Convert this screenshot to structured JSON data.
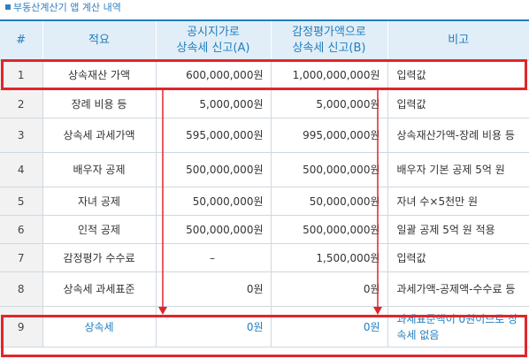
{
  "title": "부동산계산기 앱 계산 내역",
  "headers": [
    "#",
    "적요",
    "공시지가로\n상속세 신고(A)",
    "감정평가액으로\n상속세 신고(B)",
    "비고"
  ],
  "rows": [
    {
      "no": "1",
      "label": "상속재산 가액",
      "a": "600,000,000원",
      "b": "1,000,000,000원",
      "note": "입력값"
    },
    {
      "no": "2",
      "label": "장례 비용 등",
      "a": "5,000,000원",
      "b": "5,000,000원",
      "note": "입력값"
    },
    {
      "no": "3",
      "label": "상속세 과세가액",
      "a": "595,000,000원",
      "b": "995,000,000원",
      "note": "상속재산가액-장례 비용 등"
    },
    {
      "no": "4",
      "label": "배우자 공제",
      "a": "500,000,000원",
      "b": "500,000,000원",
      "note": "배우자 기본 공제 5억 원"
    },
    {
      "no": "5",
      "label": "자녀 공제",
      "a": "50,000,000원",
      "b": "50,000,000원",
      "note": "자녀 수×5천만 원"
    },
    {
      "no": "6",
      "label": "인적 공제",
      "a": "500,000,000원",
      "b": "500,000,000원",
      "note": "일괄 공제 5억 원 적용"
    },
    {
      "no": "7",
      "label": "감정평가 수수료",
      "a": "–",
      "b": "1,500,000원",
      "note": "입력값"
    },
    {
      "no": "8",
      "label": "상속세 과세표준",
      "a": "0원",
      "b": "0원",
      "note": "과세가액-공제액-수수료 등"
    },
    {
      "no": "9",
      "label": "상속세",
      "a": "0원",
      "b": "0원",
      "note": "과세표준액이 0원이므로 상속세 없음"
    }
  ],
  "colors": {
    "accent": "#1f7ec0",
    "highlight": "#e0262b",
    "header_bg": "#e1eef7"
  }
}
